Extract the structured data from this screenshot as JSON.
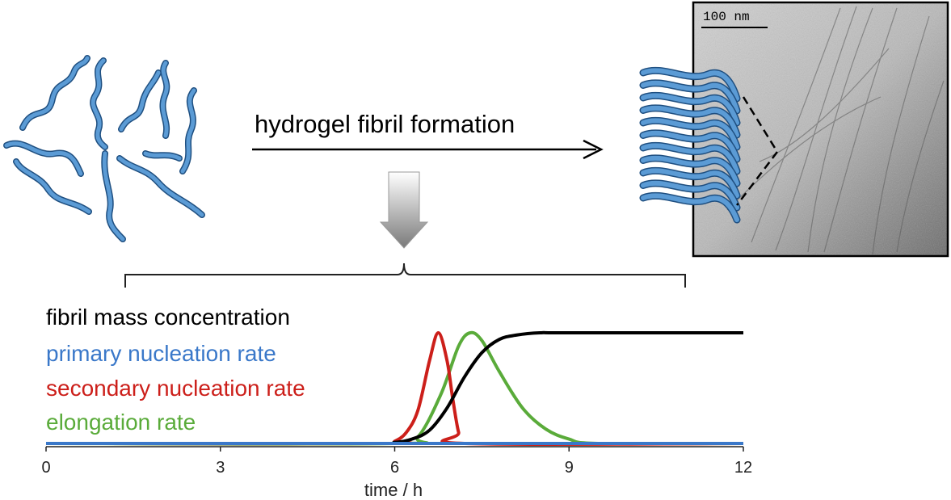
{
  "process_label": "hydrogel fibril formation",
  "micrograph": {
    "scale_bar_label": "100 nm"
  },
  "chart_data": {
    "type": "line",
    "xlabel": "time / h",
    "x_ticks": [
      0,
      3,
      6,
      9,
      12
    ],
    "xlim": [
      0,
      12
    ],
    "ylim": [
      0,
      1
    ],
    "grid": false,
    "legend_position": "top-left",
    "series": [
      {
        "name": "fibril mass concentration",
        "color": "#000000",
        "x": [
          0,
          5.5,
          6.0,
          6.3,
          6.6,
          6.9,
          7.2,
          7.5,
          7.8,
          8.1,
          8.5,
          9.0,
          12
        ],
        "y": [
          0,
          0.0,
          0.01,
          0.04,
          0.12,
          0.32,
          0.6,
          0.82,
          0.94,
          0.98,
          1.0,
          1.0,
          1.0
        ]
      },
      {
        "name": "primary nucleation rate",
        "color": "#3a78c9",
        "x": [
          0,
          12
        ],
        "y": [
          0,
          0
        ]
      },
      {
        "name": "secondary nucleation rate",
        "color": "#cc1f1a",
        "x": [
          0,
          5.8,
          6.0,
          6.2,
          6.4,
          6.6,
          6.75,
          6.9,
          7.0,
          7.1,
          7.2,
          12
        ],
        "y": [
          0,
          0,
          0.02,
          0.1,
          0.3,
          0.75,
          1.0,
          0.75,
          0.4,
          0.1,
          0,
          0
        ]
      },
      {
        "name": "elongation rate",
        "color": "#5aab3a",
        "x": [
          0,
          6.0,
          6.4,
          6.8,
          7.1,
          7.3,
          7.5,
          7.8,
          8.2,
          8.6,
          9.0,
          9.5,
          12
        ],
        "y": [
          0,
          0,
          0.06,
          0.45,
          0.88,
          1.0,
          0.93,
          0.65,
          0.32,
          0.13,
          0.04,
          0.0,
          0
        ]
      }
    ]
  }
}
